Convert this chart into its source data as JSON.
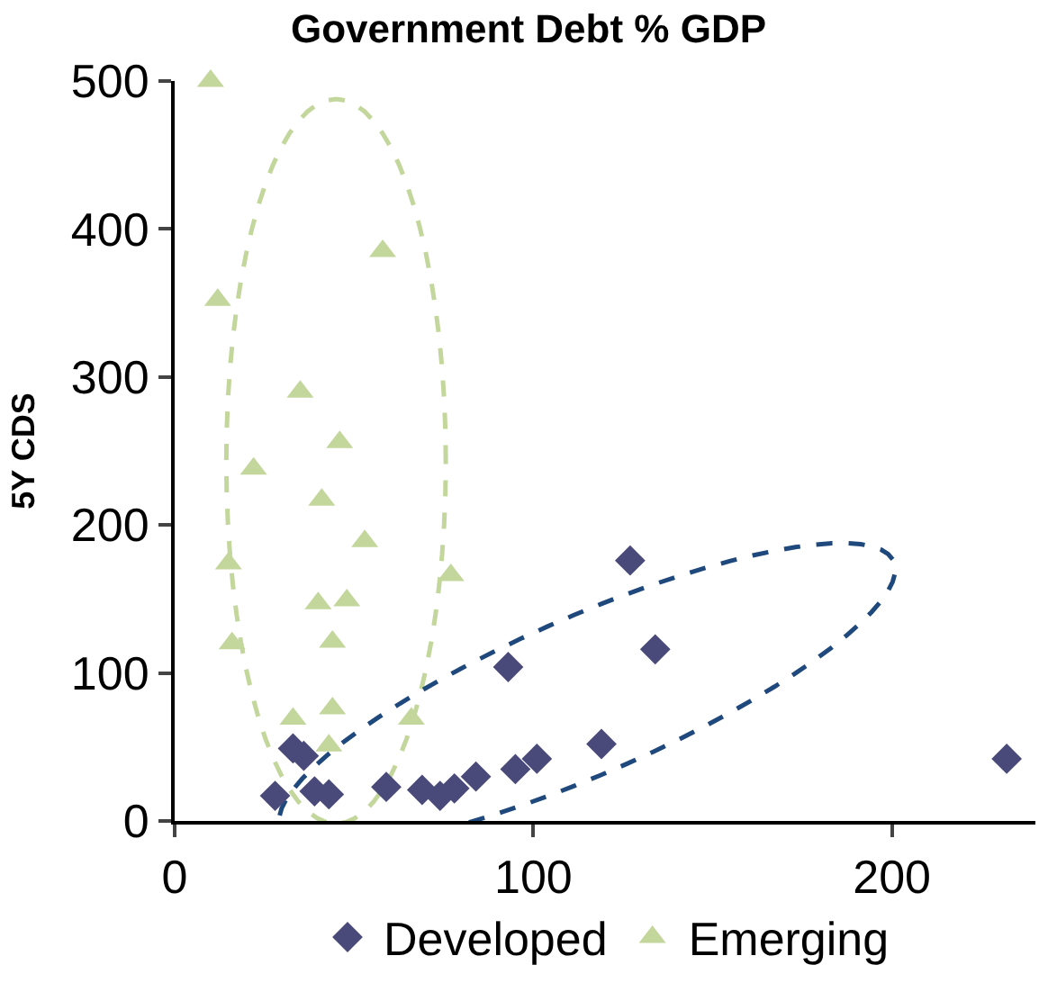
{
  "chart_data": {
    "type": "scatter",
    "title": "Government Debt % GDP",
    "ylabel": "5Y CDS",
    "xlim": [
      0,
      240
    ],
    "xticks": [
      0,
      100,
      200
    ],
    "ylim": [
      0,
      500
    ],
    "yticks": [
      0,
      100,
      200,
      300,
      400,
      500
    ],
    "grid": false,
    "legend": "bottom",
    "series": [
      {
        "name": "Developed",
        "color": "#4a4a7a",
        "marker": "diamond",
        "x": [
          127,
          134,
          93,
          232,
          119,
          101,
          95,
          84,
          78,
          74,
          69,
          59,
          43,
          39,
          33,
          36,
          28
        ],
        "values": [
          176,
          116,
          104,
          42,
          52,
          42,
          35,
          30,
          22,
          17,
          21,
          23,
          18,
          20,
          49,
          44,
          17
        ]
      },
      {
        "name": "Emerging",
        "color": "#c3d69b",
        "marker": "triangle",
        "x": [
          10,
          12,
          58,
          35,
          46,
          22,
          41,
          53,
          15,
          77,
          40,
          48,
          16,
          44,
          33,
          44,
          66,
          43
        ],
        "values": [
          500,
          352,
          385,
          290,
          256,
          238,
          217,
          189,
          174,
          166,
          147,
          149,
          120,
          121,
          69,
          76,
          69,
          51
        ]
      }
    ]
  }
}
